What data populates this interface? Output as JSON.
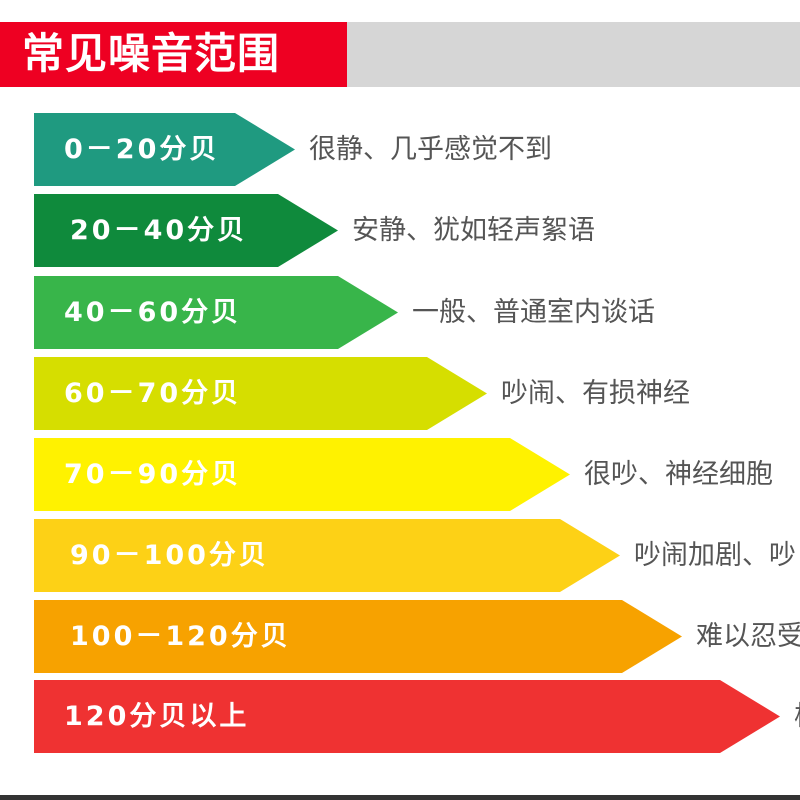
{
  "title": "常见噪音范围",
  "levels": [
    {
      "range": "0－20分贝",
      "description": "很静、几乎感觉不到",
      "color": "#1f9a80"
    },
    {
      "range": "20－40分贝",
      "description": "安静、犹如轻声絮语",
      "color": "#0f8a3c"
    },
    {
      "range": "40－60分贝",
      "description": "一般、普通室内谈话",
      "color": "#38b54a"
    },
    {
      "range": "60－70分贝",
      "description": "吵闹、有损神经",
      "color": "#d6de00"
    },
    {
      "range": "70－90分贝",
      "description": "很吵、神经细胞",
      "color": "#fff200"
    },
    {
      "range": "90－100分贝",
      "description": "吵闹加剧、吵",
      "color": "#fdd116"
    },
    {
      "range": "100－120分贝",
      "description": "难以忍受",
      "color": "#f7a200"
    },
    {
      "range": "120分贝以上",
      "description": "极",
      "color": "#ef3232"
    }
  ]
}
